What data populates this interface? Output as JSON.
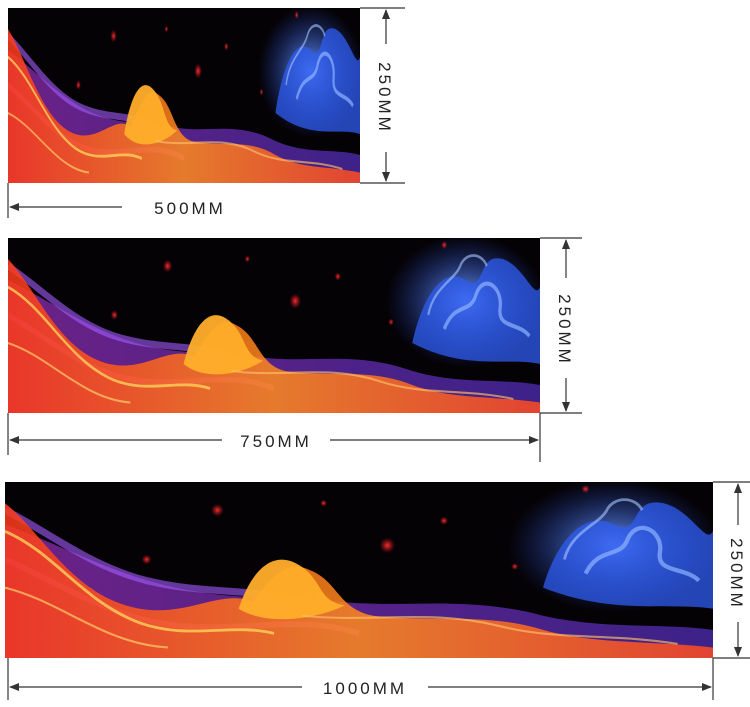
{
  "panels": [
    {
      "width_label": "500MM",
      "height_label": "250MM"
    },
    {
      "width_label": "750MM",
      "height_label": "250MM"
    },
    {
      "width_label": "1000MM",
      "height_label": "250MM"
    }
  ],
  "colors": {
    "background": "#000000",
    "flame_orange": "#ff7a1a",
    "flame_red": "#e0301e",
    "flame_purple": "#9b3df0",
    "smoke_blue": "#2e5fe8",
    "dimension_line": "#333333"
  }
}
